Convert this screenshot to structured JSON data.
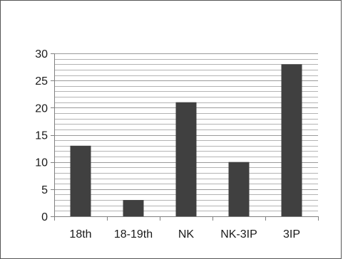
{
  "chart_data": {
    "type": "bar",
    "categories": [
      "18th",
      "18-19th",
      "NK",
      "NK-3IP",
      "3IP"
    ],
    "values": [
      13,
      3,
      21,
      10,
      28
    ],
    "title": "",
    "xlabel": "",
    "ylabel": "",
    "ylim": [
      0,
      30
    ],
    "yticks": [
      0,
      5,
      10,
      15,
      20,
      25,
      30
    ],
    "grid": true,
    "legend": "none",
    "colors": {
      "bar": "#404040",
      "grid": "#9a9a9a",
      "axis": "#808080",
      "text": "#1a1a1a",
      "frame": "#555555"
    }
  }
}
